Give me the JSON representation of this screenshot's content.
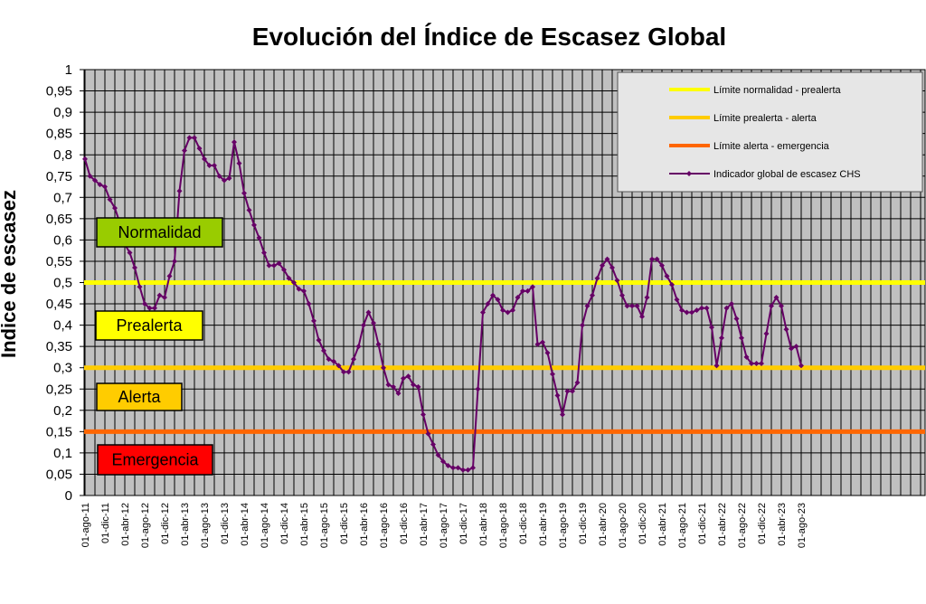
{
  "chart_data": {
    "type": "line",
    "title": "Evolución del Índice de Escasez Global",
    "xlabel": "",
    "ylabel": "Indice de escasez",
    "ylim": [
      0,
      1
    ],
    "yticks": [
      "0",
      "0,05",
      "0,1",
      "0,15",
      "0,2",
      "0,25",
      "0,3",
      "0,35",
      "0,4",
      "0,45",
      "0,5",
      "0,55",
      "0,6",
      "0,65",
      "0,7",
      "0,75",
      "0,8",
      "0,85",
      "0,9",
      "0,95",
      "1"
    ],
    "xticks": [
      "01-ago-11",
      "01-dic-11",
      "01-abr-12",
      "01-ago-12",
      "01-dic-12",
      "01-abr-13",
      "01-ago-13",
      "01-dic-13",
      "01-abr-14",
      "01-ago-14",
      "01-dic-14",
      "01-abr-15",
      "01-ago-15",
      "01-dic-15",
      "01-abr-16",
      "01-ago-16",
      "01-dic-16",
      "01-abr-17",
      "01-ago-17",
      "01-dic-17",
      "01-abr-18",
      "01-ago-18",
      "01-dic-18",
      "01-abr-19",
      "01-ago-19",
      "01-dic-19",
      "01-abr-20",
      "01-ago-20",
      "01-dic-20",
      "01-abr-21",
      "01-ago-21",
      "01-dic-21",
      "01-abr-22",
      "01-ago-22",
      "01-dic-22",
      "01-abr-23",
      "01-ago-23"
    ],
    "grid": true,
    "legend_position": "top-right",
    "reference_lines": [
      {
        "name": "Límite normalidad - prealerta",
        "value": 0.5,
        "color": "#ffff00"
      },
      {
        "name": "Límite prealerta - alerta",
        "value": 0.3,
        "color": "#ffcc00"
      },
      {
        "name": "Límite alerta - emergencia",
        "value": 0.15,
        "color": "#ff6600"
      }
    ],
    "zone_labels": [
      {
        "text": "Normalidad",
        "color": "#99cc00"
      },
      {
        "text": "Prealerta",
        "color": "#ffff00"
      },
      {
        "text": "Alerta",
        "color": "#ffcc00"
      },
      {
        "text": "Emergencia",
        "color": "#ff0000"
      }
    ],
    "series": [
      {
        "name": "Indicador global de escasez CHS",
        "color": "#660066",
        "values": [
          0.79,
          0.75,
          0.74,
          0.73,
          0.725,
          0.695,
          0.675,
          0.64,
          0.59,
          0.57,
          0.535,
          0.49,
          0.45,
          0.44,
          0.44,
          0.47,
          0.465,
          0.515,
          0.55,
          0.715,
          0.81,
          0.84,
          0.84,
          0.815,
          0.79,
          0.775,
          0.775,
          0.75,
          0.74,
          0.745,
          0.83,
          0.78,
          0.71,
          0.67,
          0.635,
          0.605,
          0.57,
          0.54,
          0.54,
          0.545,
          0.53,
          0.51,
          0.5,
          0.485,
          0.48,
          0.45,
          0.41,
          0.365,
          0.34,
          0.32,
          0.315,
          0.305,
          0.29,
          0.29,
          0.32,
          0.35,
          0.4,
          0.43,
          0.405,
          0.355,
          0.3,
          0.26,
          0.255,
          0.24,
          0.275,
          0.28,
          0.26,
          0.255,
          0.19,
          0.145,
          0.12,
          0.095,
          0.08,
          0.07,
          0.065,
          0.065,
          0.06,
          0.06,
          0.065,
          0.25,
          0.43,
          0.45,
          0.47,
          0.46,
          0.435,
          0.43,
          0.435,
          0.465,
          0.48,
          0.48,
          0.49,
          0.355,
          0.36,
          0.335,
          0.285,
          0.235,
          0.19,
          0.245,
          0.245,
          0.265,
          0.4,
          0.445,
          0.47,
          0.51,
          0.54,
          0.555,
          0.535,
          0.505,
          0.47,
          0.445,
          0.445,
          0.445,
          0.42,
          0.465,
          0.555,
          0.555,
          0.54,
          0.515,
          0.495,
          0.46,
          0.435,
          0.43,
          0.43,
          0.435,
          0.44,
          0.44,
          0.395,
          0.305,
          0.37,
          0.44,
          0.45,
          0.415,
          0.37,
          0.325,
          0.31,
          0.31,
          0.31,
          0.38,
          0.445,
          0.465,
          0.445,
          0.39,
          0.345,
          0.35,
          0.305
        ]
      }
    ]
  }
}
